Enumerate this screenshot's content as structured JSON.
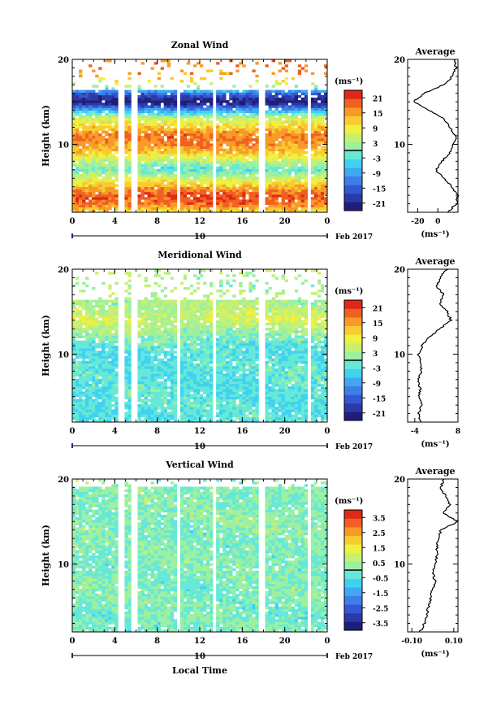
{
  "date_label": "Feb 2017",
  "day_label": "10",
  "xlabel": "Local Time",
  "ylabel": "Height (km)",
  "unit_label": "(ms⁻¹)",
  "avg_title": "Average",
  "colors": [
    "#1f1f7a",
    "#2b3aa8",
    "#3458d4",
    "#3f7ee8",
    "#3fa8f0",
    "#3fd2f0",
    "#66e8d8",
    "#9cf0a0",
    "#c8f070",
    "#f0f040",
    "#f8cc30",
    "#f89a28",
    "#f06020",
    "#e02818"
  ],
  "chart_data": [
    {
      "type": "heatmap",
      "title": "Zonal Wind",
      "x_ticks": [
        "0",
        "4",
        "8",
        "12",
        "16",
        "20",
        "0"
      ],
      "y_ticks": [
        "20",
        "10"
      ],
      "xlim": [
        0,
        24
      ],
      "ylim": [
        2,
        20
      ],
      "colorbar_ticks": [
        "21",
        "15",
        "9",
        "3",
        "-3",
        "-9",
        "-15",
        "-21"
      ],
      "colorbar_range": [
        -24,
        24
      ],
      "data_top_km": 16.5,
      "profile_km": [
        2,
        3,
        4,
        5,
        6,
        7,
        8,
        9,
        10,
        11,
        12,
        13,
        14,
        15,
        16,
        17,
        18,
        19,
        20
      ],
      "profile_vals": [
        10,
        18,
        20,
        14,
        6,
        -2,
        4,
        12,
        16,
        18,
        12,
        6,
        -8,
        -24,
        -14,
        6,
        14,
        18,
        16
      ],
      "profile_sign_noise": 0,
      "avg_xlim": [
        -30,
        20
      ],
      "avg_ticks": [
        "-20",
        "0"
      ]
    },
    {
      "type": "heatmap",
      "title": "Meridional Wind",
      "x_ticks": [
        "0",
        "4",
        "8",
        "12",
        "16",
        "20",
        "0"
      ],
      "y_ticks": [
        "20",
        "10"
      ],
      "xlim": [
        0,
        24
      ],
      "ylim": [
        2,
        20
      ],
      "colorbar_ticks": [
        "21",
        "15",
        "9",
        "3",
        "-3",
        "-9",
        "-15",
        "-21"
      ],
      "colorbar_range": [
        -24,
        24
      ],
      "data_top_km": 16.5,
      "profile_km": [
        2,
        3,
        4,
        5,
        6,
        7,
        8,
        9,
        10,
        11,
        12,
        13,
        14,
        15,
        16,
        17,
        18,
        19,
        20
      ],
      "profile_vals": [
        -2.5,
        -3,
        -2,
        -3,
        -2.5,
        -3,
        -2,
        -2.5,
        -3,
        -2,
        0,
        3,
        6,
        5,
        3,
        4,
        2,
        3,
        5
      ],
      "profile_sign_noise": 0,
      "avg_xlim": [
        -6,
        8
      ],
      "avg_ticks": [
        "-4",
        "8"
      ]
    },
    {
      "type": "heatmap",
      "title": "Vertical Wind",
      "x_ticks": [
        "0",
        "4",
        "8",
        "12",
        "16",
        "20",
        "0"
      ],
      "y_ticks": [
        "20",
        "10"
      ],
      "xlim": [
        0,
        24
      ],
      "ylim": [
        2,
        20
      ],
      "colorbar_ticks": [
        "3.5",
        "2.5",
        "1.5",
        "0.5",
        "-0.5",
        "-1.5",
        "-2.5",
        "-3.5"
      ],
      "colorbar_range": [
        -4,
        4
      ],
      "data_top_km": 19,
      "profile_km": [
        2,
        3,
        4,
        5,
        6,
        7,
        8,
        9,
        10,
        11,
        12,
        13,
        14,
        15,
        16,
        17,
        18,
        19,
        20
      ],
      "profile_vals": [
        -0.06,
        -0.04,
        -0.03,
        -0.02,
        -0.01,
        0.0,
        0.01,
        0.0,
        0.01,
        0.02,
        0.02,
        0.03,
        0.04,
        0.12,
        0.05,
        0.08,
        0.06,
        0.04,
        0.05
      ],
      "profile_sign_noise": 0,
      "avg_xlim": [
        -0.12,
        0.12
      ],
      "avg_ticks": [
        "-0.10",
        "0.10"
      ]
    }
  ]
}
